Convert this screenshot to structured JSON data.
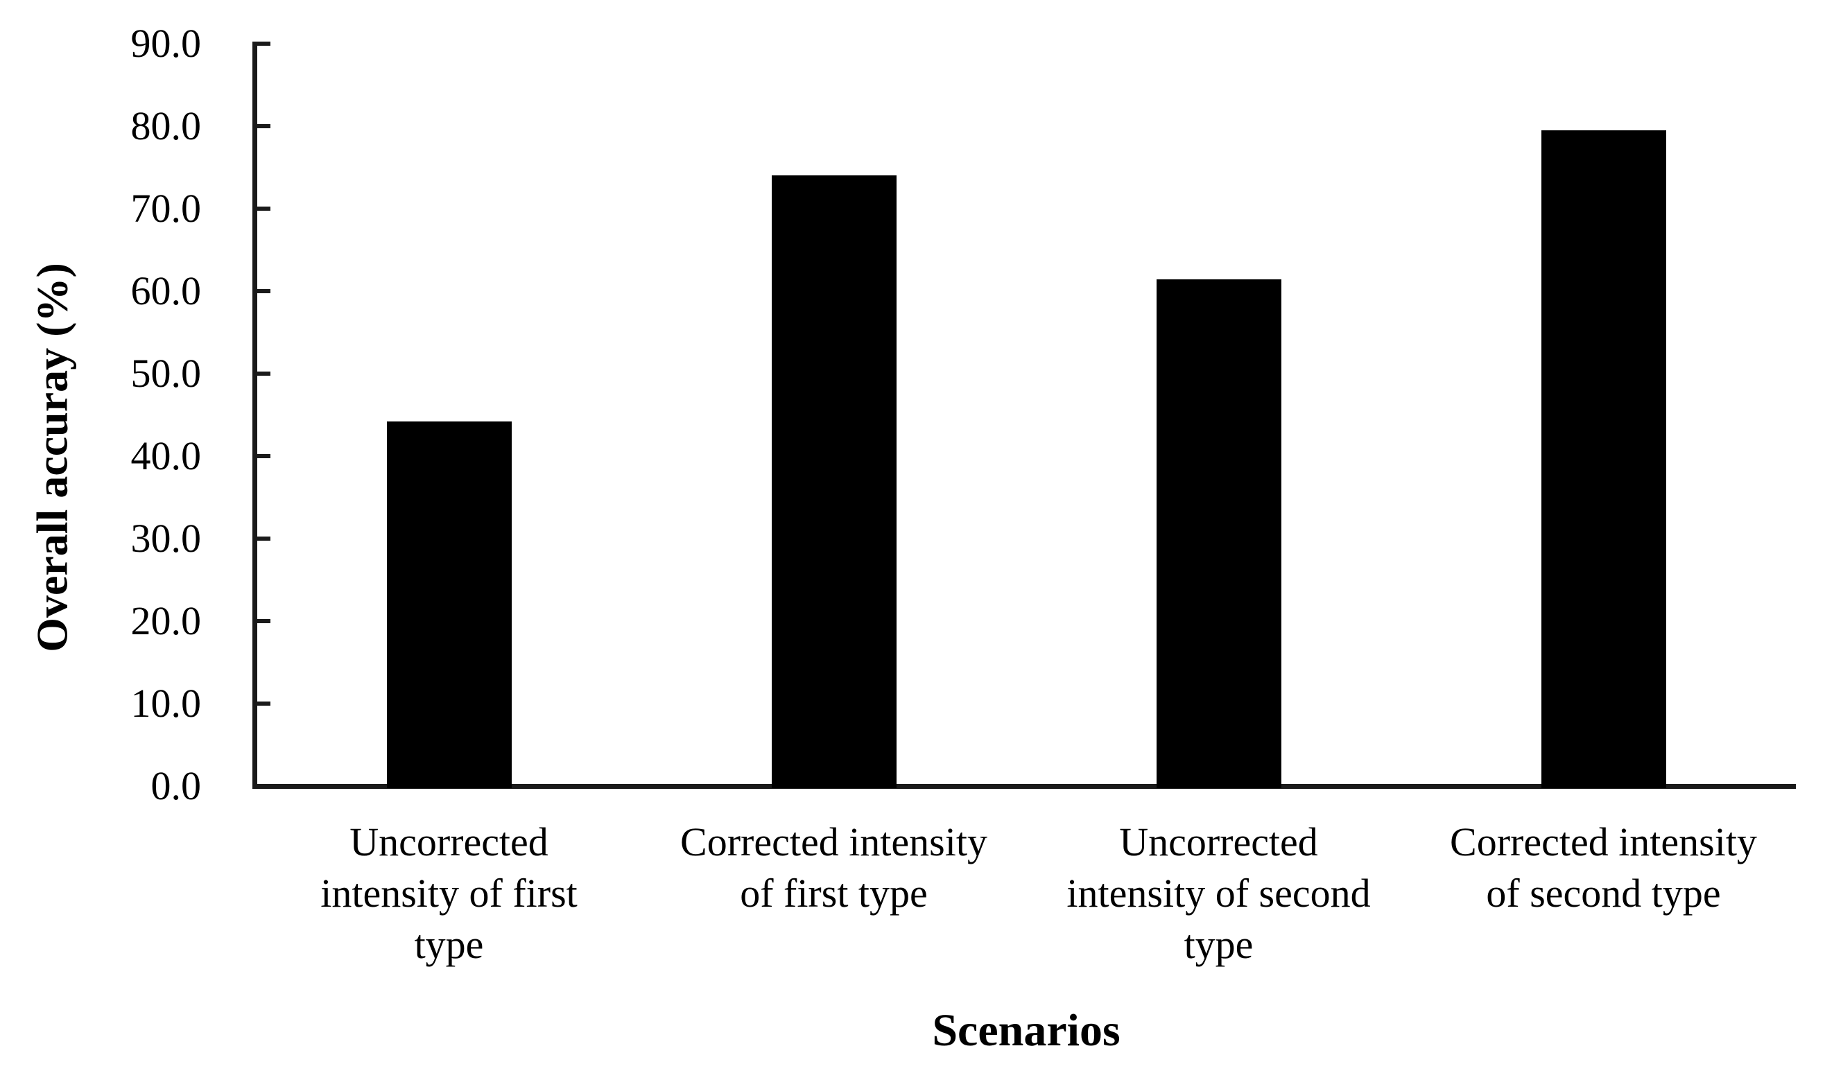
{
  "chart_data": {
    "type": "bar",
    "title": "",
    "xlabel": "Scenarios",
    "ylabel": "Overall accuray (%)",
    "categories": [
      "Uncorrected intensity of first type",
      "Corrected intensity of first type",
      "Uncorrected intensity of second type",
      "Corrected intensity of second type"
    ],
    "category_lines": [
      [
        "Uncorrected",
        "intensity of first",
        "type"
      ],
      [
        "Corrected intensity",
        "of first type"
      ],
      [
        "Uncorrected",
        "intensity of second",
        "type"
      ],
      [
        "Corrected intensity",
        "of second type"
      ]
    ],
    "values": [
      44.2,
      74.0,
      61.4,
      79.5
    ],
    "ylim": [
      0,
      90
    ],
    "ytick_step": 10,
    "ytick_labels": [
      "0.0",
      "10.0",
      "20.0",
      "30.0",
      "40.0",
      "50.0",
      "60.0",
      "70.0",
      "80.0",
      "90.0"
    ],
    "bar_color": "#000000",
    "axis_color": "#1a1a1a",
    "grid": false,
    "legend": false,
    "tick_direction": "in"
  }
}
